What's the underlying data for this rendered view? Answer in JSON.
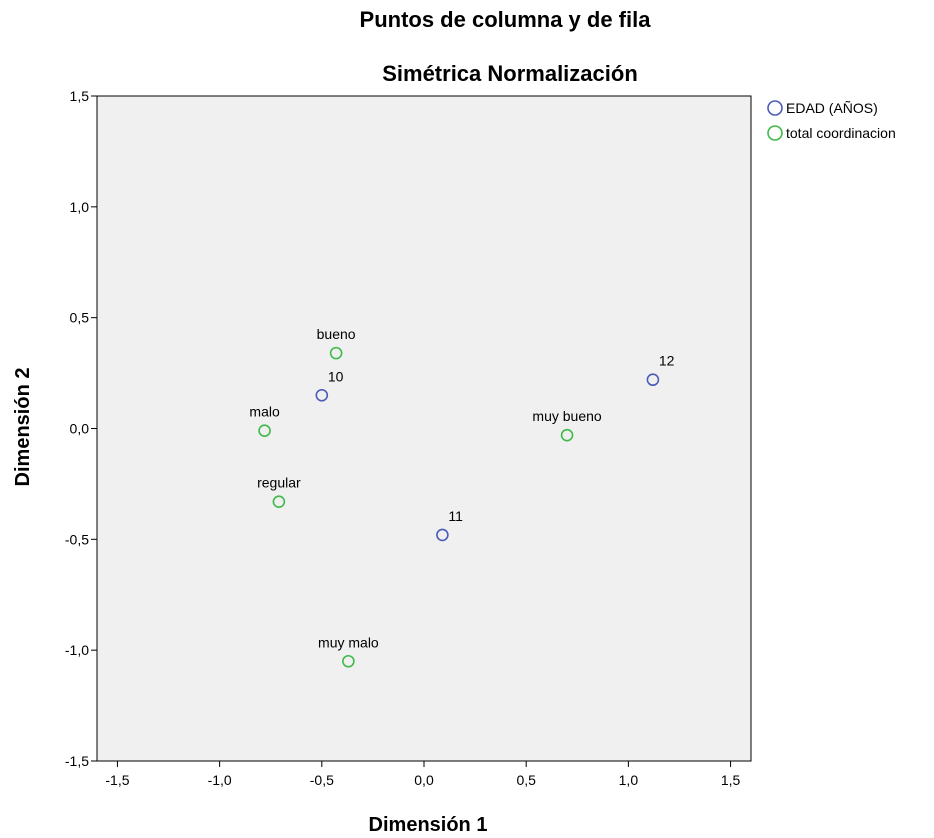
{
  "chart_data": {
    "type": "scatter",
    "title": "Puntos de columna y de fila",
    "subtitle": "Simétrica Normalización",
    "xlabel": "Dimensión 1",
    "ylabel": "Dimensión 2",
    "xlim": [
      -1.6,
      1.6
    ],
    "ylim": [
      -1.5,
      1.5
    ],
    "xticks": [
      -1.5,
      -1.0,
      -0.5,
      0.0,
      0.5,
      1.0,
      1.5
    ],
    "yticks": [
      -1.5,
      -1.0,
      -0.5,
      0.0,
      0.5,
      1.0,
      1.5
    ],
    "xtick_labels": [
      "-1,5",
      "-1,0",
      "-0,5",
      "0,0",
      "0,5",
      "1,0",
      "1,5"
    ],
    "ytick_labels": [
      "-1,5",
      "-1,0",
      "-0,5",
      "0,0",
      "0,5",
      "1,0",
      "1,5"
    ],
    "grid": false,
    "legend_position": "right-top",
    "series": [
      {
        "name": "EDAD  (AÑOS)",
        "color": "#4a5cb8",
        "points": [
          {
            "label": "10",
            "x": -0.5,
            "y": 0.15
          },
          {
            "label": "11",
            "x": 0.09,
            "y": -0.48
          },
          {
            "label": "12",
            "x": 1.12,
            "y": 0.22
          }
        ]
      },
      {
        "name": "total coordinacion",
        "color": "#3fba4a",
        "points": [
          {
            "label": "bueno",
            "x": -0.43,
            "y": 0.34
          },
          {
            "label": "malo",
            "x": -0.78,
            "y": -0.01
          },
          {
            "label": "regular",
            "x": -0.71,
            "y": -0.33
          },
          {
            "label": "muy bueno",
            "x": 0.7,
            "y": -0.03
          },
          {
            "label": "muy malo",
            "x": -0.37,
            "y": -1.05
          }
        ]
      }
    ]
  }
}
